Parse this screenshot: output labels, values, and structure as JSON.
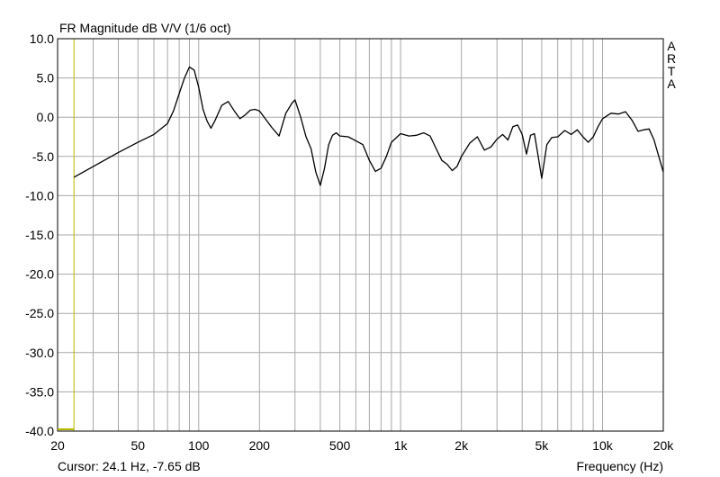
{
  "chart_data": {
    "type": "line",
    "title": "FR Magnitude dB V/V (1/6 oct)",
    "watermark": "ARTA",
    "xlabel": "Frequency (Hz)",
    "ylabel": "",
    "x_scale": "log",
    "xlim": [
      20,
      20000
    ],
    "ylim": [
      -40,
      10
    ],
    "grid": true,
    "x_tick_labels": [
      {
        "value": 20,
        "label": "20"
      },
      {
        "value": 50,
        "label": "50"
      },
      {
        "value": 100,
        "label": "100"
      },
      {
        "value": 200,
        "label": "200"
      },
      {
        "value": 500,
        "label": "500"
      },
      {
        "value": 1000,
        "label": "1k"
      },
      {
        "value": 2000,
        "label": "2k"
      },
      {
        "value": 5000,
        "label": "5k"
      },
      {
        "value": 10000,
        "label": "10k"
      },
      {
        "value": 20000,
        "label": "20k"
      }
    ],
    "y_tick_labels": [
      "10.0",
      "5.0",
      "0.0",
      "-5.0",
      "-10.0",
      "-15.0",
      "-20.0",
      "-25.0",
      "-30.0",
      "-35.0",
      "-40.0"
    ],
    "y_ticks": [
      10,
      5,
      0,
      -5,
      -10,
      -15,
      -20,
      -25,
      -30,
      -35,
      -40
    ],
    "cursor": {
      "x": 24.1,
      "y": -7.65,
      "label": "Cursor: 24.1 Hz, -7.65 dB"
    },
    "colors": {
      "curve": "#000000",
      "grid": "#a9a9a9",
      "cursor": "#b8b800",
      "frame": "#000000"
    },
    "series": [
      {
        "x": [
          24.1,
          30,
          40,
          50,
          60,
          70,
          75,
          80,
          85,
          90,
          95,
          100,
          105,
          110,
          115,
          120,
          130,
          140,
          150,
          160,
          170,
          180,
          190,
          200,
          215,
          230,
          250,
          270,
          290,
          300,
          320,
          340,
          360,
          380,
          400,
          420,
          440,
          460,
          480,
          500,
          550,
          600,
          650,
          700,
          750,
          800,
          850,
          900,
          1000,
          1100,
          1200,
          1300,
          1400,
          1500,
          1600,
          1700,
          1800,
          1900,
          2000,
          2200,
          2400,
          2600,
          2800,
          3000,
          3200,
          3400,
          3600,
          3800,
          4000,
          4200,
          4400,
          4600,
          4800,
          5000,
          5300,
          5600,
          6000,
          6500,
          7000,
          7500,
          8000,
          8500,
          9000,
          9500,
          10000,
          11000,
          12000,
          13000,
          14000,
          15000,
          16000,
          17000,
          18000,
          19000,
          20000
        ],
        "y": [
          -7.65,
          -6.3,
          -4.5,
          -3.2,
          -2.2,
          -0.8,
          0.8,
          3.0,
          5.0,
          6.4,
          6.0,
          3.8,
          1.0,
          -0.5,
          -1.4,
          -0.5,
          1.5,
          2.0,
          0.8,
          -0.2,
          0.3,
          0.9,
          1.0,
          0.8,
          -0.3,
          -1.3,
          -2.4,
          0.5,
          1.8,
          2.2,
          0.0,
          -2.5,
          -4.0,
          -7.0,
          -8.7,
          -6.5,
          -3.5,
          -2.3,
          -2.0,
          -2.4,
          -2.5,
          -3.0,
          -3.5,
          -5.5,
          -6.9,
          -6.5,
          -5.0,
          -3.2,
          -2.1,
          -2.4,
          -2.3,
          -2.0,
          -2.4,
          -4.0,
          -5.5,
          -6.0,
          -6.8,
          -6.3,
          -5.0,
          -3.3,
          -2.5,
          -4.2,
          -3.8,
          -2.8,
          -2.2,
          -2.9,
          -1.2,
          -1.0,
          -2.2,
          -4.7,
          -2.3,
          -2.1,
          -5.0,
          -7.8,
          -3.5,
          -2.6,
          -2.5,
          -1.7,
          -2.2,
          -1.6,
          -2.5,
          -3.2,
          -2.5,
          -1.2,
          -0.2,
          0.5,
          0.4,
          0.7,
          -0.4,
          -1.8,
          -1.6,
          -1.5,
          -2.9,
          -5.0,
          -7.0
        ]
      }
    ]
  }
}
